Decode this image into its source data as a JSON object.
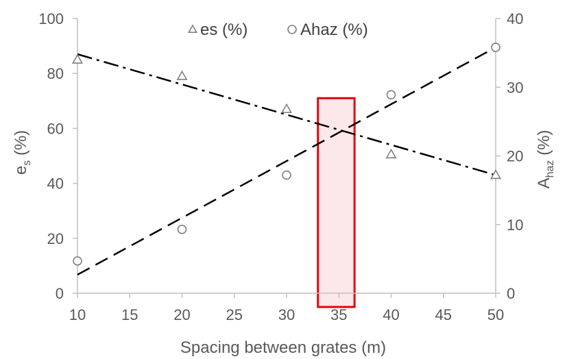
{
  "chart_data": {
    "type": "scatter",
    "xlabel": "Spacing between grates (m)",
    "ylabel_left": {
      "base": "e",
      "sub": "s",
      "suffix": " (%)"
    },
    "ylabel_right": {
      "base": "A",
      "sub": "haz",
      "suffix": " (%)"
    },
    "xlim": [
      10,
      50
    ],
    "ylim_left": [
      0,
      100
    ],
    "ylim_right": [
      0,
      40
    ],
    "x_ticks": [
      10,
      15,
      20,
      25,
      30,
      35,
      40,
      45,
      50
    ],
    "y_ticks_left": [
      0,
      20,
      40,
      60,
      80,
      100
    ],
    "y_ticks_right": [
      0,
      10,
      20,
      30,
      40
    ],
    "legend": {
      "position": "top-center",
      "entries": [
        "es (%)",
        "Ahaz (%)"
      ]
    },
    "grid": false,
    "series": [
      {
        "name": "es (%)",
        "marker": "triangle",
        "axis": "left",
        "x": [
          10,
          20,
          30,
          40,
          50
        ],
        "y": [
          85,
          79,
          67,
          50.5,
          43
        ],
        "trendline": {
          "style": "dash-dot",
          "x": [
            10,
            50
          ],
          "y": [
            87,
            43
          ]
        }
      },
      {
        "name": "Ahaz (%)",
        "marker": "circle",
        "axis": "right",
        "x": [
          10,
          20,
          30,
          40,
          50
        ],
        "y": [
          4.7,
          9.3,
          17.2,
          28.9,
          35.8
        ],
        "trendline": {
          "style": "dash",
          "x": [
            10,
            50
          ],
          "y": [
            2.7,
            35.8
          ]
        }
      }
    ],
    "highlight": {
      "x_range": [
        33,
        36.5
      ],
      "y_range_left": [
        -5,
        71
      ],
      "fill": "#fce4e8",
      "stroke": "#e8000b"
    }
  },
  "colors": {
    "axis": "#bfbfbf",
    "text": "#595959",
    "marker": "#7f7f7f",
    "trend": "#000000"
  }
}
